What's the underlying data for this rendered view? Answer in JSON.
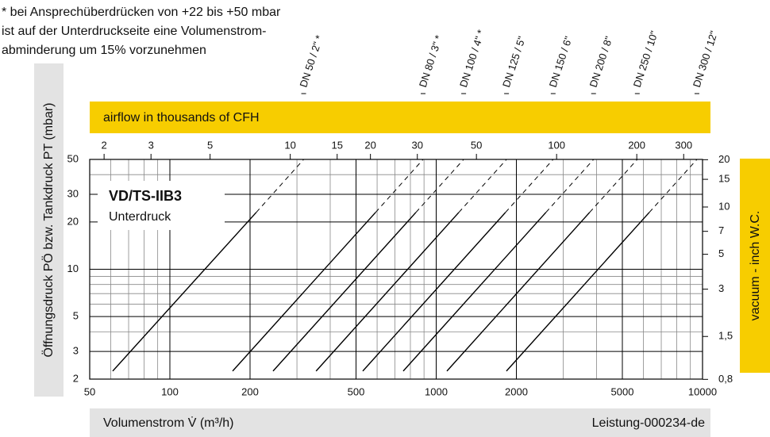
{
  "chart_data": {
    "type": "line",
    "title": "VD/TS-IIB3",
    "subtitle": "Unterdruck",
    "note": [
      "* bei Ansprechüberdrücken von +22 bis +50 mbar",
      "ist auf der Unterdruckseite eine Volumenstrom-",
      "abminderung um 15% vorzunehmen"
    ],
    "ylabel": "Öffnungsdruck PÖ bzw. Tankdruck PT (mbar)",
    "xlabel": "Volumenstrom V̇ (m³/h)",
    "x2label": "airflow in thousands of CFH",
    "y2label": "vacuum  - inch W.C.",
    "footer": "Leistung-000234-de",
    "log_scale": true,
    "grid": true,
    "xlim": [
      50,
      10000
    ],
    "xticks": [
      50,
      100,
      200,
      500,
      1000,
      2000,
      5000,
      10000
    ],
    "ylim": [
      2,
      50
    ],
    "yticks": [
      2,
      3,
      5,
      10,
      20,
      30,
      50
    ],
    "x2lim": [
      1.766,
      353.1
    ],
    "x2ticks": [
      2,
      3,
      5,
      10,
      15,
      20,
      30,
      50,
      100,
      200,
      300
    ],
    "y2lim": [
      0.803,
      20.08
    ],
    "y2ticks": [
      {
        "value": 0.8,
        "label": "0,8"
      },
      {
        "value": 1.5,
        "label": "1,5"
      },
      3,
      5,
      7,
      10,
      15,
      20
    ],
    "xgrid": [
      60,
      70,
      80,
      90,
      300,
      400,
      600,
      700,
      800,
      900,
      3000,
      4000,
      6000,
      7000,
      8000,
      9000
    ],
    "ygrid": [
      4,
      6,
      7,
      8,
      9,
      40
    ],
    "segment_styles": [
      "solid",
      "dashed"
    ],
    "series": [
      {
        "name": "DN 50 / 2\" *",
        "color": "#000000",
        "x": [
          61,
          211,
          318
        ],
        "values": [
          2.25,
          23,
          50
        ]
      },
      {
        "name": "DN 80 / 3\" *",
        "color": "#000000",
        "x": [
          172,
          592,
          893
        ],
        "values": [
          2.25,
          23,
          50
        ]
      },
      {
        "name": "DN 100 / 4\" *",
        "color": "#000000",
        "x": [
          244,
          839,
          1268
        ],
        "values": [
          2.25,
          23,
          50
        ]
      },
      {
        "name": "DN 125 / 5\"",
        "color": "#000000",
        "x": [
          354,
          1216,
          1837
        ],
        "values": [
          2.25,
          23,
          50
        ]
      },
      {
        "name": "DN 150 / 6\"",
        "color": "#000000",
        "x": [
          530,
          1820,
          2749
        ],
        "values": [
          2.25,
          23,
          50
        ]
      },
      {
        "name": "DN 200 / 8\"",
        "color": "#000000",
        "x": [
          752,
          2582,
          3899
        ],
        "values": [
          2.25,
          23,
          50
        ]
      },
      {
        "name": "DN 250 / 10\"",
        "color": "#000000",
        "x": [
          1097,
          3767,
          5689
        ],
        "values": [
          2.25,
          23,
          50
        ]
      },
      {
        "name": "DN 300 / 12\"",
        "color": "#000000",
        "x": [
          1835,
          6310,
          9528
        ],
        "values": [
          2.25,
          23,
          50
        ]
      }
    ]
  }
}
